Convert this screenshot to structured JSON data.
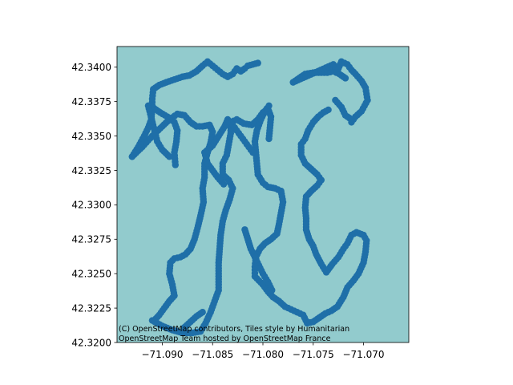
{
  "chart_data": {
    "type": "scatter",
    "title": "",
    "xlabel": "",
    "ylabel": "",
    "xlim": [
      -71.0945,
      -71.0655
    ],
    "ylim": [
      42.32,
      42.3415
    ],
    "x_ticks": [
      {
        "value": -71.09,
        "label": "−71.090"
      },
      {
        "value": -71.085,
        "label": "−71.085"
      },
      {
        "value": -71.08,
        "label": "−71.080"
      },
      {
        "value": -71.075,
        "label": "−71.075"
      },
      {
        "value": -71.07,
        "label": "−71.070"
      }
    ],
    "y_ticks": [
      {
        "value": 42.32,
        "label": "42.3200"
      },
      {
        "value": 42.3225,
        "label": "42.3225"
      },
      {
        "value": 42.325,
        "label": "42.3250"
      },
      {
        "value": 42.3275,
        "label": "42.3275"
      },
      {
        "value": 42.33,
        "label": "42.3300"
      },
      {
        "value": 42.3325,
        "label": "42.3325"
      },
      {
        "value": 42.335,
        "label": "42.3350"
      },
      {
        "value": 42.3375,
        "label": "42.3375"
      },
      {
        "value": 42.34,
        "label": "42.3400"
      }
    ],
    "grid": false,
    "background_tiles": "basemap",
    "colors": {
      "points": "#1f6fa8",
      "basemap": "#92cbcd"
    },
    "attribution": [
      "(C) OpenStreetMap contributors, Tiles style by Humanitarian",
      "OpenStreetMap Team hosted by OpenStreetMap France"
    ],
    "series": [
      {
        "paths": [
          [
            [
              -71.093,
              42.3335
            ],
            [
              -71.092,
              42.3342
            ],
            [
              -71.091,
              42.335
            ],
            [
              -71.09,
              42.3357
            ],
            [
              -71.0893,
              42.3362
            ],
            [
              -71.0885,
              42.3366
            ],
            [
              -71.0878,
              42.3365
            ],
            [
              -71.0872,
              42.336
            ],
            [
              -71.0866,
              42.3357
            ],
            [
              -71.086,
              42.3357
            ],
            [
              -71.0853,
              42.3358
            ],
            [
              -71.085,
              42.3353
            ],
            [
              -71.0852,
              42.3345
            ],
            [
              -71.0855,
              42.3338
            ],
            [
              -71.0858,
              42.333
            ],
            [
              -71.0858,
              42.332
            ],
            [
              -71.086,
              42.3312
            ],
            [
              -71.0859,
              42.3302
            ],
            [
              -71.0862,
              42.3292
            ],
            [
              -71.0865,
              42.3283
            ],
            [
              -71.0868,
              42.3275
            ],
            [
              -71.0872,
              42.3268
            ],
            [
              -71.0877,
              42.3264
            ],
            [
              -71.0882,
              42.3262
            ],
            [
              -71.0888,
              42.3261
            ],
            [
              -71.0892,
              42.3258
            ],
            [
              -71.0893,
              42.325
            ],
            [
              -71.089,
              42.3242
            ],
            [
              -71.0888,
              42.3234
            ],
            [
              -71.0893,
              42.323
            ],
            [
              -71.0898,
              42.3225
            ],
            [
              -71.0903,
              42.322
            ],
            [
              -71.0908,
              42.3216
            ]
          ],
          [
            [
              -71.093,
              42.3335
            ],
            [
              -71.0924,
              42.3342
            ],
            [
              -71.0918,
              42.335
            ],
            [
              -71.0914,
              42.3356
            ],
            [
              -71.0911,
              42.3362
            ],
            [
              -71.091,
              42.337
            ],
            [
              -71.091,
              42.3377
            ],
            [
              -71.0909,
              42.3384
            ],
            [
              -71.0903,
              42.3387
            ],
            [
              -71.0896,
              42.3389
            ],
            [
              -71.0888,
              42.3391
            ],
            [
              -71.088,
              42.3393
            ],
            [
              -71.0873,
              42.3394
            ],
            [
              -71.0866,
              42.3397
            ],
            [
              -71.086,
              42.3401
            ],
            [
              -71.0855,
              42.3404
            ],
            [
              -71.085,
              42.3401
            ],
            [
              -71.0845,
              42.3398
            ],
            [
              -71.084,
              42.3395
            ],
            [
              -71.0835,
              42.3393
            ],
            [
              -71.083,
              42.3395
            ],
            [
              -71.0826,
              42.3399
            ],
            [
              -71.0822,
              42.3397
            ],
            [
              -71.0818,
              42.3399
            ],
            [
              -71.0815,
              42.3401
            ],
            [
              -71.081,
              42.3402
            ],
            [
              -71.0805,
              42.3403
            ]
          ],
          [
            [
              -71.091,
              42.3216
            ],
            [
              -71.09,
              42.3212
            ],
            [
              -71.089,
              42.3209
            ],
            [
              -71.088,
              42.3207
            ],
            [
              -71.087,
              42.3207
            ],
            [
              -71.0862,
              42.3208
            ],
            [
              -71.0857,
              42.3214
            ],
            [
              -71.0852,
              42.3222
            ],
            [
              -71.0848,
              42.323
            ],
            [
              -71.0844,
              42.3238
            ],
            [
              -71.0844,
              42.3248
            ],
            [
              -71.0844,
              42.3258
            ],
            [
              -71.0843,
              42.3268
            ],
            [
              -71.0842,
              42.3278
            ],
            [
              -71.084,
              42.3288
            ],
            [
              -71.0837,
              42.3296
            ],
            [
              -71.0833,
              42.3304
            ],
            [
              -71.083,
              42.3312
            ],
            [
              -71.0834,
              42.3318
            ],
            [
              -71.084,
              42.3322
            ],
            [
              -71.084,
              42.333
            ],
            [
              -71.0836,
              42.3336
            ],
            [
              -71.0834,
              42.3344
            ],
            [
              -71.0832,
              42.3352
            ],
            [
              -71.0832,
              42.336
            ],
            [
              -71.0826,
              42.3362
            ],
            [
              -71.0819,
              42.3359
            ],
            [
              -71.0811,
              42.3358
            ],
            [
              -71.0805,
              42.3362
            ],
            [
              -71.08,
              42.3367
            ],
            [
              -71.0795,
              42.337
            ],
            [
              -71.0792,
              42.3364
            ],
            [
              -71.0793,
              42.3356
            ],
            [
              -71.0794,
              42.3348
            ]
          ],
          [
            [
              -71.08,
              42.3242
            ],
            [
              -71.0795,
              42.3237
            ],
            [
              -71.079,
              42.3233
            ],
            [
              -71.0784,
              42.323
            ],
            [
              -71.0778,
              42.3226
            ],
            [
              -71.0772,
              42.3224
            ],
            [
              -71.0766,
              42.3222
            ],
            [
              -71.076,
              42.322
            ],
            [
              -71.0756,
              42.3214
            ],
            [
              -71.075,
              42.3215
            ],
            [
              -71.0744,
              42.3218
            ],
            [
              -71.0738,
              42.3221
            ],
            [
              -71.0732,
              42.3223
            ],
            [
              -71.0726,
              42.3226
            ],
            [
              -71.072,
              42.3233
            ],
            [
              -71.0716,
              42.324
            ],
            [
              -71.071,
              42.3245
            ],
            [
              -71.0705,
              42.325
            ],
            [
              -71.07,
              42.3258
            ],
            [
              -71.0698,
              42.3266
            ],
            [
              -71.0697,
              42.3274
            ],
            [
              -71.07,
              42.3278
            ],
            [
              -71.0707,
              42.328
            ],
            [
              -71.0712,
              42.3278
            ],
            [
              -71.0716,
              42.3272
            ],
            [
              -71.072,
              42.3268
            ],
            [
              -71.0725,
              42.3262
            ],
            [
              -71.0731,
              42.3257
            ],
            [
              -71.0737,
              42.3251
            ],
            [
              -71.0742,
              42.3257
            ],
            [
              -71.0747,
              42.3264
            ],
            [
              -71.075,
              42.327
            ],
            [
              -71.0754,
              42.3275
            ],
            [
              -71.0757,
              42.3282
            ],
            [
              -71.0757,
              42.329
            ],
            [
              -71.0758,
              42.3298
            ],
            [
              -71.0757,
              42.3306
            ],
            [
              -71.0752,
              42.331
            ],
            [
              -71.0746,
              42.3314
            ],
            [
              -71.0742,
              42.3318
            ],
            [
              -71.0746,
              42.3322
            ],
            [
              -71.0752,
              42.3326
            ],
            [
              -71.0758,
              42.333
            ],
            [
              -71.0762,
              42.3336
            ],
            [
              -71.0762,
              42.3344
            ],
            [
              -71.0758,
              42.3348
            ],
            [
              -71.0755,
              42.3354
            ],
            [
              -71.075,
              42.336
            ],
            [
              -71.0745,
              42.3364
            ],
            [
              -71.074,
              42.3367
            ],
            [
              -71.0735,
              42.3369
            ]
          ],
          [
            [
              -71.0782,
              42.331
            ],
            [
              -71.078,
              42.3302
            ],
            [
              -71.0782,
              42.3294
            ],
            [
              -71.0784,
              42.3286
            ],
            [
              -71.0786,
              42.3279
            ],
            [
              -71.0792,
              42.3275
            ],
            [
              -71.0798,
              42.3272
            ],
            [
              -71.0803,
              42.3268
            ],
            [
              -71.0807,
              42.3262
            ],
            [
              -71.0808,
              42.3255
            ],
            [
              -71.0808,
              42.3248
            ],
            [
              -71.08,
              42.3242
            ]
          ],
          [
            [
              -71.0782,
              42.331
            ],
            [
              -71.0788,
              42.3312
            ],
            [
              -71.0795,
              42.3313
            ],
            [
              -71.08,
              42.3316
            ],
            [
              -71.0805,
              42.3322
            ],
            [
              -71.0806,
              42.333
            ],
            [
              -71.0807,
              42.3338
            ],
            [
              -71.0808,
              42.3346
            ],
            [
              -71.0806,
              42.3354
            ],
            [
              -71.0802,
              42.3362
            ],
            [
              -71.0798,
              42.3368
            ],
            [
              -71.0794,
              42.3372
            ]
          ],
          [
            [
              -71.0718,
              42.3392
            ],
            [
              -71.0724,
              42.3395
            ],
            [
              -71.073,
              42.3397
            ],
            [
              -71.0736,
              42.3396
            ],
            [
              -71.0742,
              42.3396
            ],
            [
              -71.075,
              42.3396
            ],
            [
              -71.0758,
              42.3395
            ],
            [
              -71.0764,
              42.3392
            ],
            [
              -71.077,
              42.3389
            ],
            [
              -71.073,
              42.3402
            ],
            [
              -71.0725,
              42.3399
            ],
            [
              -71.0722,
              42.3404
            ],
            [
              -71.0716,
              42.3402
            ],
            [
              -71.0712,
              42.3398
            ],
            [
              -71.0708,
              42.3395
            ],
            [
              -71.0702,
              42.339
            ],
            [
              -71.0698,
              42.3385
            ],
            [
              -71.0696,
              42.3376
            ],
            [
              -71.0702,
              42.3368
            ],
            [
              -71.0708,
              42.3364
            ],
            [
              -71.0712,
              42.336
            ]
          ],
          [
            [
              -71.0887,
              42.3329
            ],
            [
              -71.0888,
              42.3338
            ],
            [
              -71.0886,
              42.3346
            ],
            [
              -71.0885,
              42.3354
            ],
            [
              -71.0888,
              42.336
            ],
            [
              -71.0895,
              42.3364
            ],
            [
              -71.0902,
              42.3367
            ],
            [
              -71.0908,
              42.337
            ],
            [
              -71.0914,
              42.3372
            ],
            [
              -71.0905,
              42.3346
            ],
            [
              -71.09,
              42.334
            ],
            [
              -71.0893,
              42.3335
            ]
          ],
          [
            [
              -71.0839,
              42.3315
            ],
            [
              -71.0845,
              42.332
            ],
            [
              -71.085,
              42.3325
            ],
            [
              -71.0855,
              42.333
            ],
            [
              -71.0858,
              42.3338
            ],
            [
              -71.085,
              42.3343
            ],
            [
              -71.0844,
              42.335
            ],
            [
              -71.0838,
              42.3357
            ],
            [
              -71.0835,
              42.3362
            ],
            [
              -71.083,
              42.3358
            ],
            [
              -71.0826,
              42.3354
            ],
            [
              -71.0822,
              42.335
            ],
            [
              -71.0818,
              42.3346
            ],
            [
              -71.0814,
              42.3342
            ],
            [
              -71.081,
              42.3338
            ]
          ],
          [
            [
              -71.0791,
              42.3238
            ],
            [
              -71.0795,
              42.3244
            ],
            [
              -71.08,
              42.325
            ],
            [
              -71.0804,
              42.3256
            ],
            [
              -71.0808,
              42.3262
            ],
            [
              -71.0812,
              42.3268
            ],
            [
              -71.0815,
              42.3275
            ],
            [
              -71.0818,
              42.3282
            ]
          ],
          [
            [
              -71.0712,
              42.3362
            ],
            [
              -71.0718,
              42.3365
            ],
            [
              -71.0722,
              42.3371
            ],
            [
              -71.0728,
              42.3376
            ]
          ],
          [
            [
              -71.0878,
              42.3211
            ],
            [
              -71.0872,
              42.3215
            ],
            [
              -71.0866,
              42.3219
            ],
            [
              -71.086,
              42.3222
            ]
          ]
        ]
      }
    ]
  }
}
